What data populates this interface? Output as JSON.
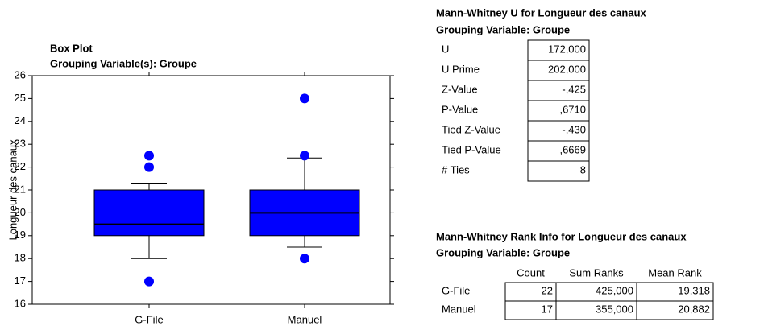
{
  "chart_data": {
    "type": "box",
    "title": "Box Plot",
    "subtitle": "Grouping Variable(s): Groupe",
    "ylabel": "Longueur des canaux",
    "categories": [
      "G-File",
      "Manuel"
    ],
    "color": "#0000ff",
    "boxes": [
      {
        "whislo": 18,
        "q1": 19,
        "med": 19.5,
        "q3": 21,
        "whishi": 21.3,
        "fliers": [
          22,
          22.5,
          17
        ]
      },
      {
        "whislo": 18.5,
        "q1": 19,
        "med": 20,
        "q3": 21,
        "whishi": 22.4,
        "fliers": [
          22.5,
          25,
          18
        ]
      }
    ],
    "ylim": [
      16,
      26
    ],
    "yticks": [
      16,
      17,
      18,
      19,
      20,
      21,
      22,
      23,
      24,
      25,
      26
    ]
  },
  "u_table": {
    "title": "Mann-Whitney U for Longueur des canaux",
    "subtitle": "Grouping Variable: Groupe",
    "rows": [
      [
        "U",
        "172,000"
      ],
      [
        "U Prime",
        "202,000"
      ],
      [
        "Z-Value",
        "-,425"
      ],
      [
        "P-Value",
        ",6710"
      ],
      [
        "Tied Z-Value",
        "-,430"
      ],
      [
        "Tied P-Value",
        ",6669"
      ],
      [
        "# Ties",
        "8"
      ]
    ]
  },
  "rank_table": {
    "title": "Mann-Whitney Rank Info for Longueur des canaux",
    "subtitle": "Grouping Variable: Groupe",
    "header": [
      "Count",
      "Sum Ranks",
      "Mean Rank"
    ],
    "rows": [
      [
        "G-File",
        "22",
        "425,000",
        "19,318"
      ],
      [
        "Manuel",
        "17",
        "355,000",
        "20,882"
      ]
    ]
  }
}
